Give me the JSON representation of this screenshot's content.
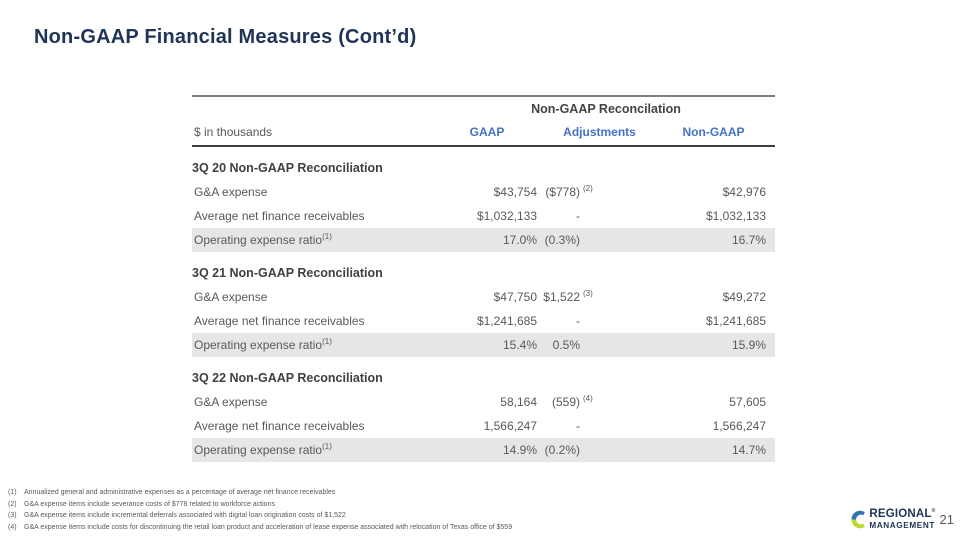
{
  "slide": {
    "title": "Non-GAAP Financial Measures (Cont’d)",
    "page_number": "21"
  },
  "table": {
    "group_header": "Non-GAAP Reconcilation",
    "unit_label": "$ in thousands",
    "columns": {
      "gaap": "GAAP",
      "adjustments": "Adjustments",
      "non_gaap": "Non-GAAP"
    },
    "sections": [
      {
        "header": "3Q 20 Non-GAAP Reconciliation",
        "rows": [
          {
            "label": "G&A expense",
            "label_sup": "",
            "gaap": "$43,754",
            "adj": "($778)",
            "adj_sup": "(2)",
            "non_gaap": "$42,976",
            "highlight": false
          },
          {
            "label": "Average net finance receivables",
            "label_sup": "",
            "gaap": "$1,032,133",
            "adj": "-",
            "adj_sup": "",
            "non_gaap": "$1,032,133",
            "highlight": false
          },
          {
            "label": "Operating expense ratio",
            "label_sup": "(1)",
            "gaap": "17.0%",
            "adj": "(0.3%)",
            "adj_sup": "",
            "non_gaap": "16.7%",
            "highlight": true
          }
        ]
      },
      {
        "header": "3Q 21 Non-GAAP Reconciliation",
        "rows": [
          {
            "label": "G&A expense",
            "label_sup": "",
            "gaap": "$47,750",
            "adj": "$1,522",
            "adj_sup": "(3)",
            "non_gaap": "$49,272",
            "highlight": false
          },
          {
            "label": "Average net finance receivables",
            "label_sup": "",
            "gaap": "$1,241,685",
            "adj": "-",
            "adj_sup": "",
            "non_gaap": "$1,241,685",
            "highlight": false
          },
          {
            "label": "Operating expense ratio",
            "label_sup": "(1)",
            "gaap": "15.4%",
            "adj": "0.5%",
            "adj_sup": "",
            "non_gaap": "15.9%",
            "highlight": true
          }
        ]
      },
      {
        "header": "3Q 22 Non-GAAP Reconciliation",
        "rows": [
          {
            "label": "G&A expense",
            "label_sup": "",
            "gaap": "58,164",
            "adj": "(559)",
            "adj_sup": "(4)",
            "non_gaap": "57,605",
            "highlight": false
          },
          {
            "label": "Average net finance receivables",
            "label_sup": "",
            "gaap": "1,566,247",
            "adj": "-",
            "adj_sup": "",
            "non_gaap": "1,566,247",
            "highlight": false
          },
          {
            "label": "Operating expense ratio",
            "label_sup": "(1)",
            "gaap": "14.9%",
            "adj": "(0.2%)",
            "adj_sup": "",
            "non_gaap": "14.7%",
            "highlight": true
          }
        ]
      }
    ]
  },
  "footnotes": [
    {
      "num": "(1)",
      "text": "Annualized general and administrative expenses as a percentage of average net finance receivables"
    },
    {
      "num": "(2)",
      "text": "G&A expense items include severance costs of $778 related to workforce actions"
    },
    {
      "num": "(3)",
      "text": "G&A expense items include incremental deferrals associated with digital loan origination costs of $1,522"
    },
    {
      "num": "(4)",
      "text": "G&A expense items include costs for discontinuing the retail loan product and acceleration of lease expense associated with relocation of Texas office of $559"
    }
  ],
  "logo": {
    "line1": "REGIONAL",
    "registered": "®",
    "line2": "MANAGEMENT"
  },
  "colors": {
    "title_navy": "#1F3456",
    "header_blue": "#4472C4",
    "body_gray": "#595959",
    "highlight_gray": "#E7E6E6",
    "line_gray": "#7F7F7F",
    "logo_blue": "#2E75B6",
    "logo_green": "#BFD730"
  }
}
